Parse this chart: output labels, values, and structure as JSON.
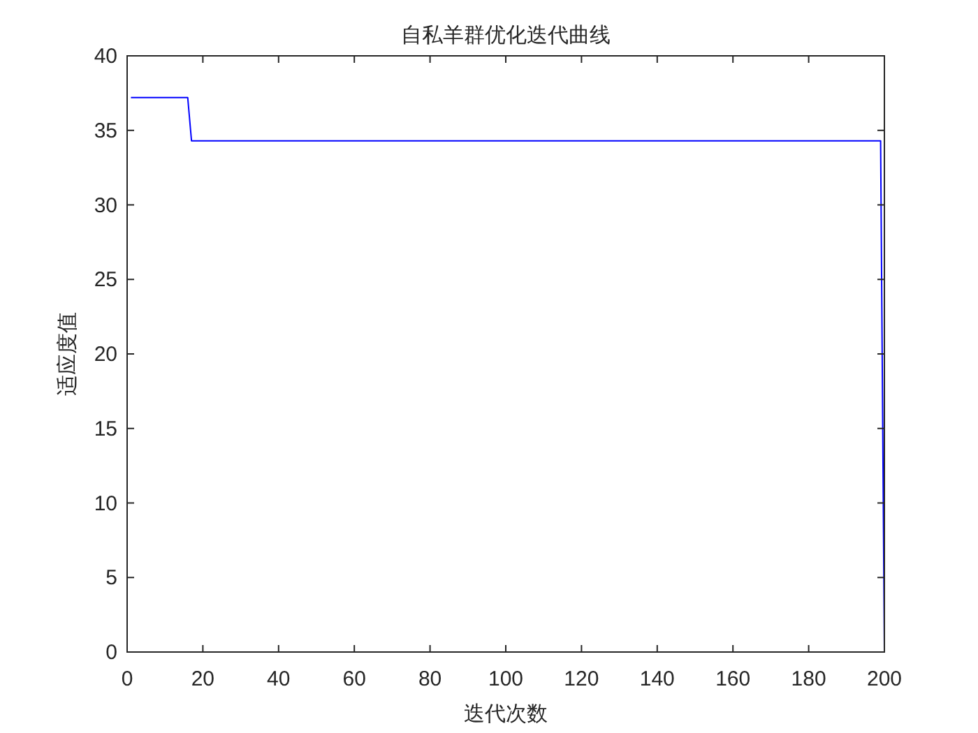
{
  "chart_data": {
    "type": "line",
    "title": "自私羊群优化迭代曲线",
    "xlabel": "迭代次数",
    "ylabel": "适应度值",
    "x": [
      1,
      16,
      17,
      199,
      200
    ],
    "series": [
      {
        "color": "#0000ff",
        "values": [
          37.2,
          37.2,
          34.3,
          34.3,
          0
        ]
      }
    ],
    "xlim": [
      0,
      200
    ],
    "xticks": [
      0,
      20,
      40,
      60,
      80,
      100,
      120,
      140,
      160,
      180,
      200
    ],
    "ylim": [
      0,
      40
    ],
    "yticks": [
      0,
      5,
      10,
      15,
      20,
      25,
      30,
      35,
      40
    ],
    "grid": false,
    "marker": "none",
    "line_style": "solid"
  }
}
